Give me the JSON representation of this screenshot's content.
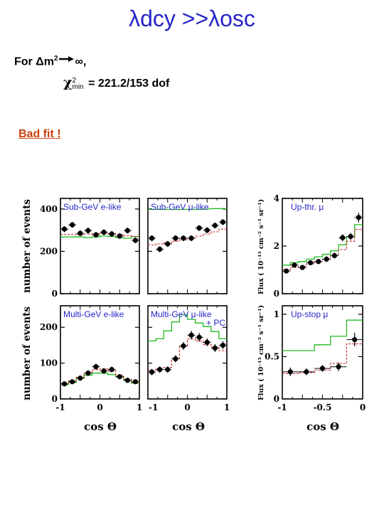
{
  "title": "λdcy >>λosc",
  "formula": {
    "line1_prefix": "For Δm",
    "line1_sup": "2",
    "line1_suffix": "∞,",
    "line2_chi": "χ",
    "line2_sup": "2",
    "line2_sub": "min",
    "line2_value": " = 221.2/153 dof"
  },
  "note": "Bad fit !",
  "axis_text": {
    "ylabel_events_1": "number of events",
    "ylabel_events_2": "number of events",
    "ylabel_flux_top": "Flux ( 10⁻¹³ cm⁻² s⁻¹ sr⁻¹)",
    "ylabel_flux_bottom": "Flux ( 10⁻¹³ cm⁻² s⁻¹ sr⁻¹)",
    "xlabel_1": "cos Θ",
    "xlabel_2": "cos Θ",
    "xlabel_3": "cos Θ"
  },
  "colors": {
    "title": "#2525c8",
    "panel_label": "#2525c8",
    "note": "#c84010",
    "green_model": "#22bb22",
    "red_model": "#cc2222",
    "data": "#000000"
  },
  "chart_data": [
    {
      "id": "sub-gev-e",
      "type": "line",
      "label": "Sub-GeV e-like",
      "xlim": [
        -1,
        1
      ],
      "ylim": [
        0,
        450
      ],
      "yticks": [
        0,
        200,
        400
      ],
      "show_yticklabels": true,
      "x": [
        -0.9,
        -0.7,
        -0.5,
        -0.3,
        -0.1,
        0.1,
        0.3,
        0.5,
        0.7,
        0.9
      ],
      "series": [
        {
          "name": "data",
          "values": [
            305,
            325,
            285,
            298,
            278,
            290,
            282,
            272,
            298,
            252
          ],
          "errors": [
            14,
            14,
            14,
            14,
            14,
            14,
            14,
            14,
            14,
            14
          ]
        },
        {
          "name": "model-green",
          "values": [
            268,
            268,
            268,
            265,
            268,
            272,
            270,
            265,
            262,
            270
          ]
        },
        {
          "name": "model-red",
          "values": [
            280,
            280,
            278,
            282,
            284,
            286,
            284,
            280,
            274,
            270
          ]
        }
      ]
    },
    {
      "id": "sub-gev-mu",
      "type": "line",
      "label": "Sub-GeV μ-like",
      "xlim": [
        -1,
        1
      ],
      "ylim": [
        0,
        450
      ],
      "yticks": [
        0,
        200,
        400
      ],
      "show_yticklabels": false,
      "x": [
        -0.9,
        -0.7,
        -0.5,
        -0.3,
        -0.1,
        0.1,
        0.3,
        0.5,
        0.7,
        0.9
      ],
      "series": [
        {
          "name": "data",
          "values": [
            262,
            210,
            235,
            262,
            262,
            262,
            310,
            300,
            322,
            338
          ],
          "errors": [
            14,
            14,
            14,
            14,
            14,
            14,
            14,
            14,
            14,
            14
          ]
        },
        {
          "name": "model-green",
          "values": [
            398,
            398,
            398,
            398,
            398,
            398,
            398,
            400,
            402,
            402
          ]
        },
        {
          "name": "model-red",
          "values": [
            230,
            235,
            240,
            248,
            255,
            262,
            272,
            282,
            292,
            305
          ]
        }
      ]
    },
    {
      "id": "up-thr-mu",
      "type": "line",
      "label": "Up-thr. μ",
      "xlim": [
        -1,
        0
      ],
      "ylim": [
        0,
        4
      ],
      "yticks": [
        0,
        2,
        4
      ],
      "show_yticklabels": true,
      "x": [
        -0.95,
        -0.85,
        -0.75,
        -0.65,
        -0.55,
        -0.45,
        -0.35,
        -0.25,
        -0.15,
        -0.05
      ],
      "series": [
        {
          "name": "data",
          "values": [
            0.95,
            1.2,
            1.1,
            1.3,
            1.35,
            1.45,
            1.6,
            2.35,
            2.4,
            3.2
          ],
          "errors": [
            0.1,
            0.1,
            0.1,
            0.1,
            0.1,
            0.12,
            0.12,
            0.15,
            0.15,
            0.2
          ]
        },
        {
          "name": "model-green",
          "values": [
            1.2,
            1.3,
            1.35,
            1.45,
            1.55,
            1.65,
            1.8,
            2.05,
            2.4,
            2.9
          ]
        },
        {
          "name": "model-red",
          "values": [
            1.0,
            1.1,
            1.15,
            1.25,
            1.35,
            1.45,
            1.6,
            1.85,
            2.2,
            2.7
          ]
        }
      ]
    },
    {
      "id": "multi-gev-e",
      "type": "line",
      "label": "Multi-GeV e-like",
      "xlim": [
        -1,
        1
      ],
      "ylim": [
        0,
        260
      ],
      "yticks": [
        0,
        100,
        200
      ],
      "show_yticklabels": true,
      "x": [
        -0.9,
        -0.7,
        -0.5,
        -0.3,
        -0.1,
        0.1,
        0.3,
        0.5,
        0.7,
        0.9
      ],
      "series": [
        {
          "name": "data",
          "values": [
            42,
            48,
            58,
            72,
            90,
            78,
            82,
            62,
            52,
            48
          ],
          "errors": [
            6,
            6,
            7,
            8,
            8,
            8,
            8,
            7,
            7,
            6
          ]
        },
        {
          "name": "model-green",
          "values": [
            40,
            46,
            58,
            66,
            72,
            72,
            68,
            62,
            52,
            44
          ]
        },
        {
          "name": "model-red",
          "values": [
            42,
            50,
            60,
            72,
            82,
            84,
            78,
            66,
            55,
            46
          ]
        }
      ]
    },
    {
      "id": "multi-gev-mu",
      "type": "line",
      "label": "Multi-GeV μ-like + PC",
      "xlim": [
        -1,
        1
      ],
      "ylim": [
        0,
        260
      ],
      "yticks": [
        0,
        100,
        200
      ],
      "show_yticklabels": false,
      "x": [
        -0.9,
        -0.7,
        -0.5,
        -0.3,
        -0.1,
        0.1,
        0.3,
        0.5,
        0.7,
        0.9
      ],
      "series": [
        {
          "name": "data",
          "values": [
            75,
            82,
            82,
            112,
            148,
            178,
            172,
            158,
            142,
            150
          ],
          "errors": [
            9,
            9,
            9,
            10,
            11,
            12,
            12,
            11,
            11,
            11
          ]
        },
        {
          "name": "model-green",
          "values": [
            162,
            168,
            190,
            215,
            235,
            222,
            212,
            202,
            188,
            168
          ]
        },
        {
          "name": "model-red",
          "values": [
            80,
            85,
            88,
            112,
            148,
            168,
            162,
            152,
            145,
            135
          ]
        }
      ]
    },
    {
      "id": "up-stop-mu",
      "type": "line",
      "label": "Up-stop μ",
      "xlim": [
        -1,
        0
      ],
      "ylim": [
        0,
        1.1
      ],
      "yticks": [
        0,
        0.5,
        1
      ],
      "show_yticklabels": true,
      "x": [
        -0.9,
        -0.7,
        -0.5,
        -0.3,
        -0.1
      ],
      "series": [
        {
          "name": "data",
          "values": [
            0.32,
            0.32,
            0.36,
            0.38,
            0.7
          ],
          "errors": [
            0.05,
            0.04,
            0.04,
            0.05,
            0.08
          ]
        },
        {
          "name": "model-green",
          "values": [
            0.57,
            0.57,
            0.64,
            0.74,
            0.93
          ]
        },
        {
          "name": "model-red",
          "values": [
            0.3,
            0.31,
            0.34,
            0.42,
            0.65
          ]
        }
      ]
    }
  ]
}
